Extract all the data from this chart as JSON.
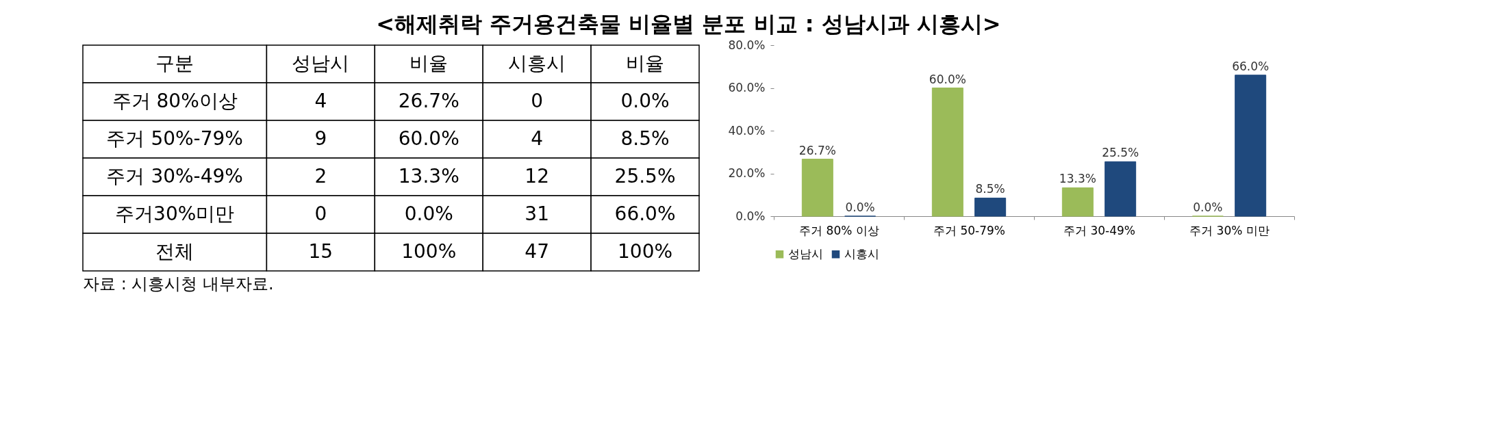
{
  "chart_data": [
    {
      "type": "other",
      "title": "<해제취락 주거용건축물 비율별 분포 비교 : 성남시과 시흥시>",
      "categories": [
        "구분",
        "성남시",
        "비율",
        "시흥시",
        "비율"
      ],
      "annotations": [
        "주거 80%이상",
        "4",
        "26.7%",
        "0",
        "0.0%",
        "주거 50%-79%",
        "9",
        "60.0%",
        "4",
        "8.5%",
        "주거 30%-49%",
        "2",
        "13.3%",
        "12",
        "25.5%",
        "주거30%미만",
        "0",
        "0.0%",
        "31",
        "66.0%",
        "전체",
        "15",
        "100%",
        "47",
        "100%",
        "자료 : 시흥시청 내부자료."
      ]
    },
    {
      "type": "bar",
      "categories": [
        "주거 80% 이상",
        "주거 50-79%",
        "주거 30-49%",
        "주거 30% 미만"
      ],
      "series": [
        {
          "name": "성남시",
          "color": "#9bbb59",
          "values": [
            26.7,
            60.0,
            13.3,
            0.0
          ],
          "value_labels": [
            "26.7%",
            "60.0%",
            "13.3%",
            "0.0%"
          ]
        },
        {
          "name": "시흥시",
          "color": "#1f497d",
          "values": [
            0.0,
            8.5,
            25.5,
            66.0
          ],
          "value_labels": [
            "0.0%",
            "8.5%",
            "25.5%",
            "66.0%"
          ]
        }
      ],
      "ylim": [
        0,
        80
      ],
      "yticks": [
        {
          "value": 0,
          "label": "0.0%"
        },
        {
          "value": 20,
          "label": "20.0%"
        },
        {
          "value": 40,
          "label": "40.0%"
        },
        {
          "value": 60,
          "label": "60.0%"
        },
        {
          "value": 80,
          "label": "80.0%"
        }
      ],
      "grid": false,
      "legend": "bottom"
    }
  ]
}
